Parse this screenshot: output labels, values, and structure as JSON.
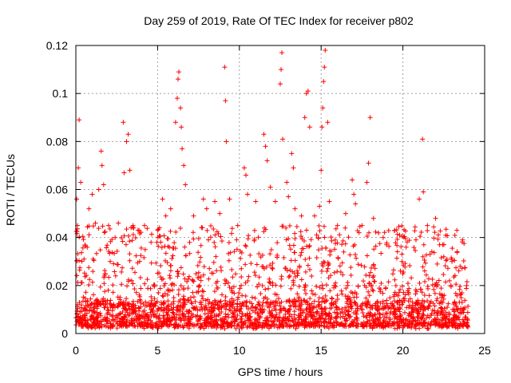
{
  "chart_data": {
    "type": "scatter",
    "title": "Day 259 of 2019, Rate Of TEC Index for receiver p802",
    "xlabel": "GPS time / hours",
    "ylabel": "ROTI / TECUs",
    "xlim": [
      0,
      25
    ],
    "ylim": [
      0,
      0.12
    ],
    "xticks": [
      0,
      5,
      10,
      15,
      20,
      25
    ],
    "yticks": [
      0,
      0.02,
      0.04,
      0.06,
      0.08,
      0.1,
      0.12
    ],
    "xtick_labels": [
      "0",
      "5",
      "10",
      "15",
      "20",
      "25"
    ],
    "ytick_labels": [
      "0",
      "0.02",
      "0.04",
      "0.06",
      "0.08",
      "0.1",
      "0.12"
    ],
    "grid": true,
    "marker": "+",
    "marker_color": "#ff0000",
    "series": [
      {
        "name": "ROTI",
        "points": [
          [
            0.05,
            0.056
          ],
          [
            0.1,
            0.045
          ],
          [
            0.15,
            0.069
          ],
          [
            0.2,
            0.089
          ],
          [
            0.3,
            0.063
          ],
          [
            0.5,
            0.031
          ],
          [
            0.8,
            0.052
          ],
          [
            1.0,
            0.058
          ],
          [
            1.2,
            0.046
          ],
          [
            1.4,
            0.06
          ],
          [
            1.55,
            0.076
          ],
          [
            1.6,
            0.07
          ],
          [
            1.7,
            0.062
          ],
          [
            2.0,
            0.045
          ],
          [
            2.4,
            0.04
          ],
          [
            2.6,
            0.046
          ],
          [
            2.9,
            0.088
          ],
          [
            2.95,
            0.067
          ],
          [
            3.1,
            0.08
          ],
          [
            3.2,
            0.083
          ],
          [
            3.3,
            0.068
          ],
          [
            3.5,
            0.045
          ],
          [
            3.8,
            0.043
          ],
          [
            4.2,
            0.045
          ],
          [
            4.6,
            0.038
          ],
          [
            5.0,
            0.043
          ],
          [
            5.3,
            0.056
          ],
          [
            5.5,
            0.049
          ],
          [
            5.8,
            0.052
          ],
          [
            6.1,
            0.088
          ],
          [
            6.2,
            0.098
          ],
          [
            6.25,
            0.106
          ],
          [
            6.3,
            0.109
          ],
          [
            6.4,
            0.094
          ],
          [
            6.45,
            0.086
          ],
          [
            6.5,
            0.077
          ],
          [
            6.6,
            0.07
          ],
          [
            6.7,
            0.062
          ],
          [
            7.2,
            0.049
          ],
          [
            7.8,
            0.056
          ],
          [
            8.0,
            0.052
          ],
          [
            8.5,
            0.055
          ],
          [
            8.8,
            0.05
          ],
          [
            9.1,
            0.111
          ],
          [
            9.15,
            0.097
          ],
          [
            9.2,
            0.08
          ],
          [
            9.4,
            0.056
          ],
          [
            9.9,
            0.045
          ],
          [
            10.3,
            0.069
          ],
          [
            10.4,
            0.066
          ],
          [
            10.5,
            0.058
          ],
          [
            11.0,
            0.055
          ],
          [
            11.5,
            0.083
          ],
          [
            11.6,
            0.078
          ],
          [
            11.7,
            0.072
          ],
          [
            11.9,
            0.061
          ],
          [
            12.2,
            0.055
          ],
          [
            12.5,
            0.104
          ],
          [
            12.55,
            0.11
          ],
          [
            12.6,
            0.117
          ],
          [
            12.65,
            0.081
          ],
          [
            12.9,
            0.063
          ],
          [
            13.0,
            0.057
          ],
          [
            13.2,
            0.075
          ],
          [
            13.3,
            0.069
          ],
          [
            13.4,
            0.052
          ],
          [
            13.8,
            0.049
          ],
          [
            14.0,
            0.09
          ],
          [
            14.1,
            0.1
          ],
          [
            14.2,
            0.101
          ],
          [
            14.3,
            0.086
          ],
          [
            14.6,
            0.049
          ],
          [
            14.9,
            0.053
          ],
          [
            15.0,
            0.068
          ],
          [
            15.05,
            0.086
          ],
          [
            15.1,
            0.094
          ],
          [
            15.15,
            0.105
          ],
          [
            15.2,
            0.111
          ],
          [
            15.25,
            0.118
          ],
          [
            15.4,
            0.088
          ],
          [
            15.5,
            0.055
          ],
          [
            16.0,
            0.045
          ],
          [
            16.5,
            0.05
          ],
          [
            16.9,
            0.064
          ],
          [
            17.0,
            0.058
          ],
          [
            17.1,
            0.054
          ],
          [
            17.5,
            0.045
          ],
          [
            17.8,
            0.063
          ],
          [
            17.9,
            0.071
          ],
          [
            18.0,
            0.09
          ],
          [
            18.2,
            0.048
          ],
          [
            19.0,
            0.037
          ],
          [
            19.5,
            0.043
          ],
          [
            19.8,
            0.041
          ],
          [
            20.2,
            0.036
          ],
          [
            20.8,
            0.039
          ],
          [
            21.0,
            0.056
          ],
          [
            21.2,
            0.081
          ],
          [
            21.25,
            0.059
          ],
          [
            21.5,
            0.045
          ],
          [
            22.0,
            0.048
          ],
          [
            22.5,
            0.032
          ],
          [
            23.0,
            0.03
          ],
          [
            23.3,
            0.043
          ],
          [
            23.5,
            0.028
          ],
          [
            23.9,
            0.02
          ]
        ]
      }
    ]
  }
}
